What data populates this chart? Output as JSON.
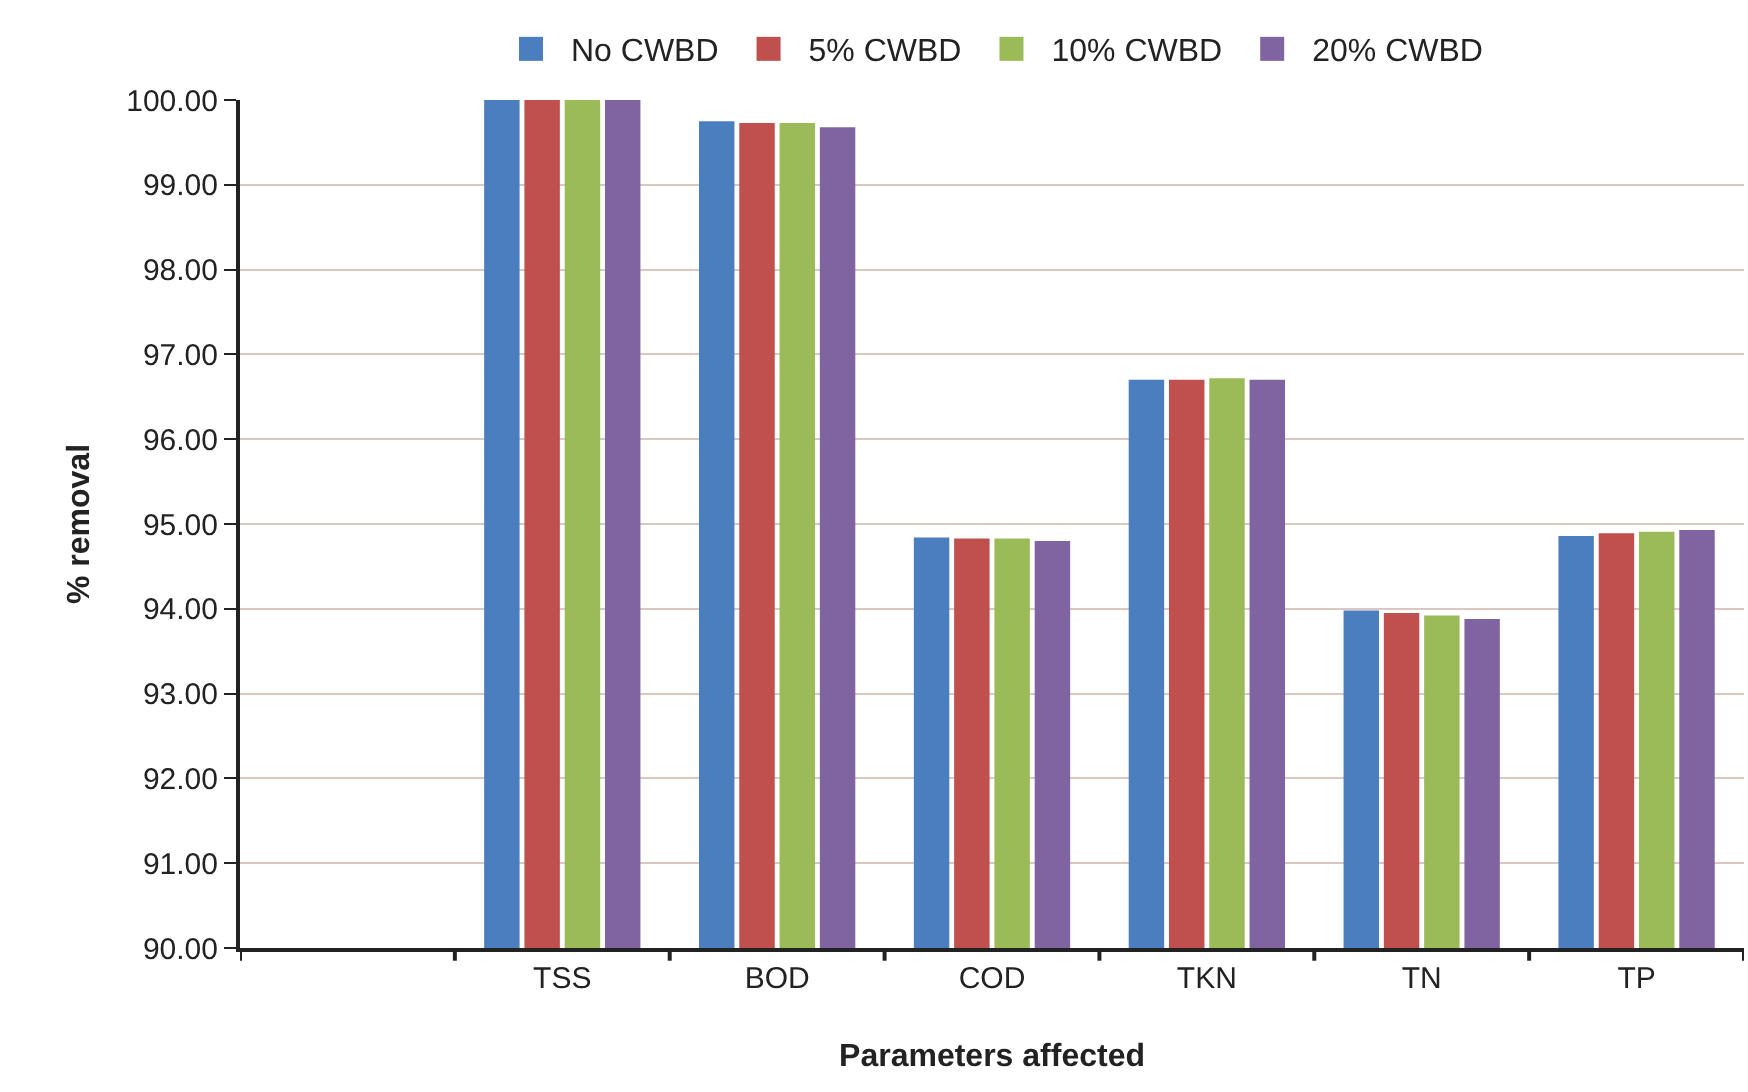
{
  "chart_data": {
    "type": "bar",
    "xlabel": "Parameters affected",
    "ylabel": "% removal",
    "categories": [
      null,
      "TSS",
      "BOD",
      "COD",
      "TKN",
      "TN",
      "TP"
    ],
    "series": [
      {
        "name": "No CWBD",
        "color": "#4a7ebf",
        "values": [
          null,
          100,
          99.75,
          94.84,
          96.7,
          93.98,
          94.86
        ]
      },
      {
        "name": "5% CWBD",
        "color": "#c0504d",
        "values": [
          null,
          100,
          99.73,
          94.83,
          96.7,
          93.95,
          94.89
        ]
      },
      {
        "name": "10% CWBD",
        "color": "#9bbb59",
        "values": [
          null,
          100,
          99.73,
          94.83,
          96.72,
          93.92,
          94.91
        ]
      },
      {
        "name": "20% CWBD",
        "color": "#8064a2",
        "values": [
          null,
          100,
          99.68,
          94.8,
          96.7,
          93.88,
          94.93
        ]
      }
    ],
    "ylim": [
      90,
      100
    ],
    "yticks": [
      {
        "value": 90,
        "label": "90.00"
      },
      {
        "value": 91,
        "label": "91.00"
      },
      {
        "value": 92,
        "label": "92.00"
      },
      {
        "value": 93,
        "label": "93.00"
      },
      {
        "value": 94,
        "label": "94.00"
      },
      {
        "value": 95,
        "label": "95.00"
      },
      {
        "value": 96,
        "label": "96.00"
      },
      {
        "value": 97,
        "label": "97.00"
      },
      {
        "value": 98,
        "label": "98.00"
      },
      {
        "value": 99,
        "label": "99.00"
      },
      {
        "value": 100,
        "label": "100.00"
      }
    ],
    "grid": "y",
    "legend": "top"
  }
}
